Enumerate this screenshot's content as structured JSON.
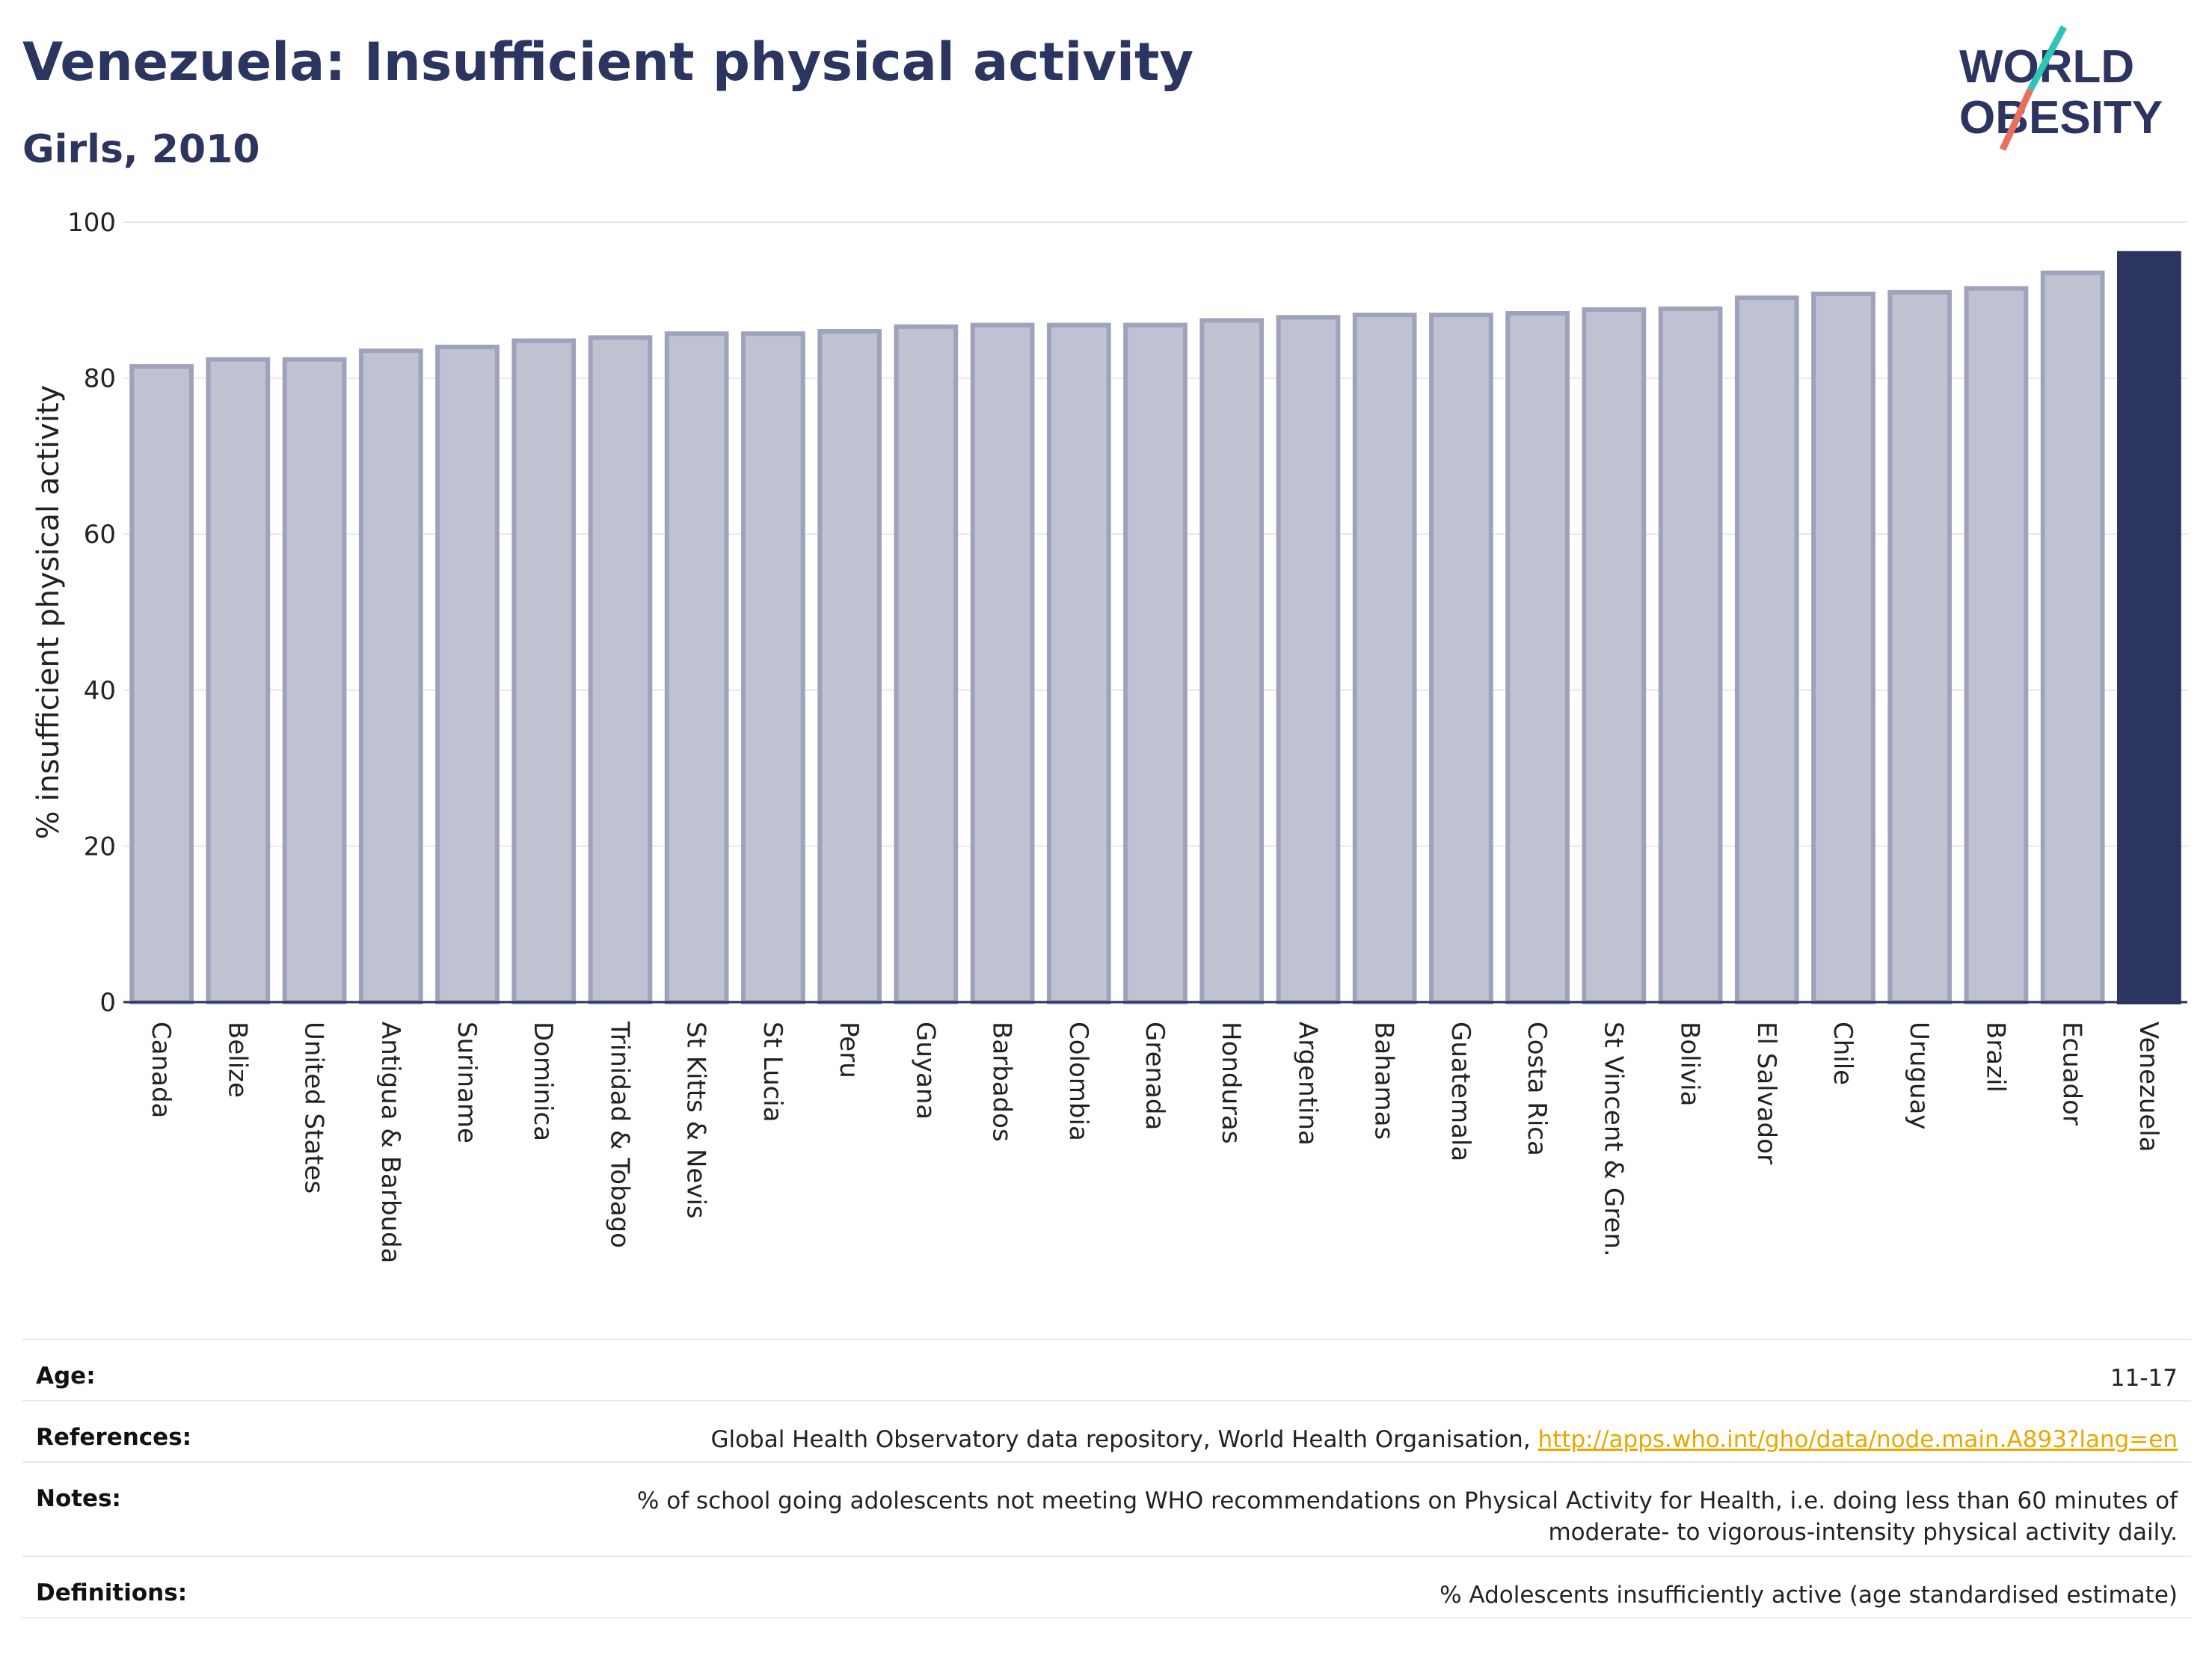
{
  "header": {
    "title": "Venezuela: Insufficient physical activity",
    "subtitle": "Girls, 2010"
  },
  "logo": {
    "line1": "WORLD",
    "line2": "OBESITY"
  },
  "chart_data": {
    "type": "bar",
    "ylabel": "% insufficient physical activity",
    "ylim": [
      0,
      100
    ],
    "yticks": [
      0,
      20,
      40,
      60,
      80,
      100
    ],
    "categories": [
      "Canada",
      "Belize",
      "United States",
      "Antigua & Barbuda",
      "Suriname",
      "Dominica",
      "Trinidad & Tobago",
      "St Kitts & Nevis",
      "St Lucia",
      "Peru",
      "Guyana",
      "Barbados",
      "Colombia",
      "Grenada",
      "Honduras",
      "Argentina",
      "Bahamas",
      "Guatemala",
      "Costa Rica",
      "St Vincent & Gren.",
      "Bolivia",
      "El Salvador",
      "Chile",
      "Uruguay",
      "Brazil",
      "Ecuador",
      "Venezuela"
    ],
    "values": [
      81.5,
      82.4,
      82.4,
      83.5,
      84.0,
      84.8,
      85.2,
      85.7,
      85.7,
      86.0,
      86.6,
      86.8,
      86.8,
      86.8,
      87.4,
      87.8,
      88.1,
      88.1,
      88.3,
      88.8,
      88.9,
      90.3,
      90.8,
      91.0,
      91.5,
      93.5,
      96.0
    ],
    "highlight": "Venezuela",
    "colors": {
      "bar": "#bfc2d1",
      "bar_border": "#9ea3bb",
      "highlight": "#2b3560",
      "grid": "#e6e6ee",
      "axis": "#2b3560"
    },
    "grid": true,
    "legend": false
  },
  "meta": {
    "age": {
      "label": "Age:",
      "value": "11-17"
    },
    "references": {
      "label": "References:",
      "text": "Global Health Observatory data repository, World Health Organisation, ",
      "link": "http://apps.who.int/gho/data/node.main.A893?lang=en"
    },
    "notes": {
      "label": "Notes:",
      "line1": "% of school going adolescents not meeting WHO recommendations on Physical Activity for Health, i.e. doing less than 60 minutes of",
      "line2": "moderate- to vigorous-intensity physical activity daily."
    },
    "definitions": {
      "label": "Definitions:",
      "value": "% Adolescents insufficiently active (age standardised estimate)"
    }
  }
}
